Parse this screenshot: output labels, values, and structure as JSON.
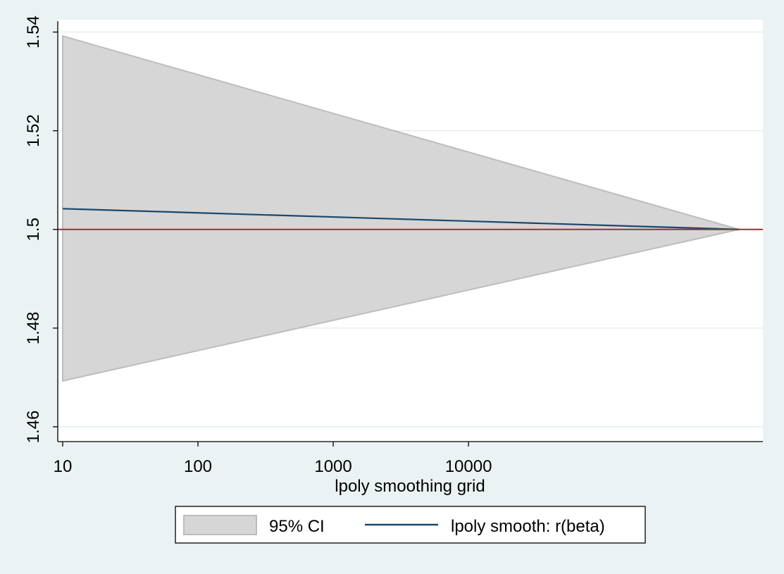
{
  "chart_data": {
    "type": "area",
    "title": "",
    "xlabel": "lpoly smoothing grid",
    "ylabel": "",
    "x_scale": "log",
    "x_ticks": [
      10,
      100,
      1000,
      10000
    ],
    "x_tick_labels": [
      "10",
      "100",
      "1000",
      "10000"
    ],
    "xlim": [
      9.2,
      1500000
    ],
    "y_ticks": [
      1.46,
      1.48,
      1.5,
      1.52,
      1.54
    ],
    "y_tick_labels": [
      "1.46",
      "1.48",
      "1.5",
      "1.52",
      "1.54"
    ],
    "ylim": [
      1.457,
      1.5425
    ],
    "grid": "horizontal",
    "legend_position": "bottom",
    "series": [
      {
        "name": "95% CI",
        "kind": "band",
        "x": [
          10,
          1000000
        ],
        "lower": [
          1.4693,
          1.5
        ],
        "upper": [
          1.5392,
          1.5
        ],
        "color": "#d6d6d6",
        "stroke": "#bdbdbd"
      },
      {
        "name": "lpoly smooth: r(beta)",
        "kind": "line",
        "x": [
          10,
          1000000
        ],
        "y": [
          1.5042,
          1.5
        ],
        "color": "#1a476f"
      }
    ],
    "reference_lines": [
      {
        "axis": "y",
        "value": 1.5,
        "color": "#90353b"
      }
    ]
  }
}
